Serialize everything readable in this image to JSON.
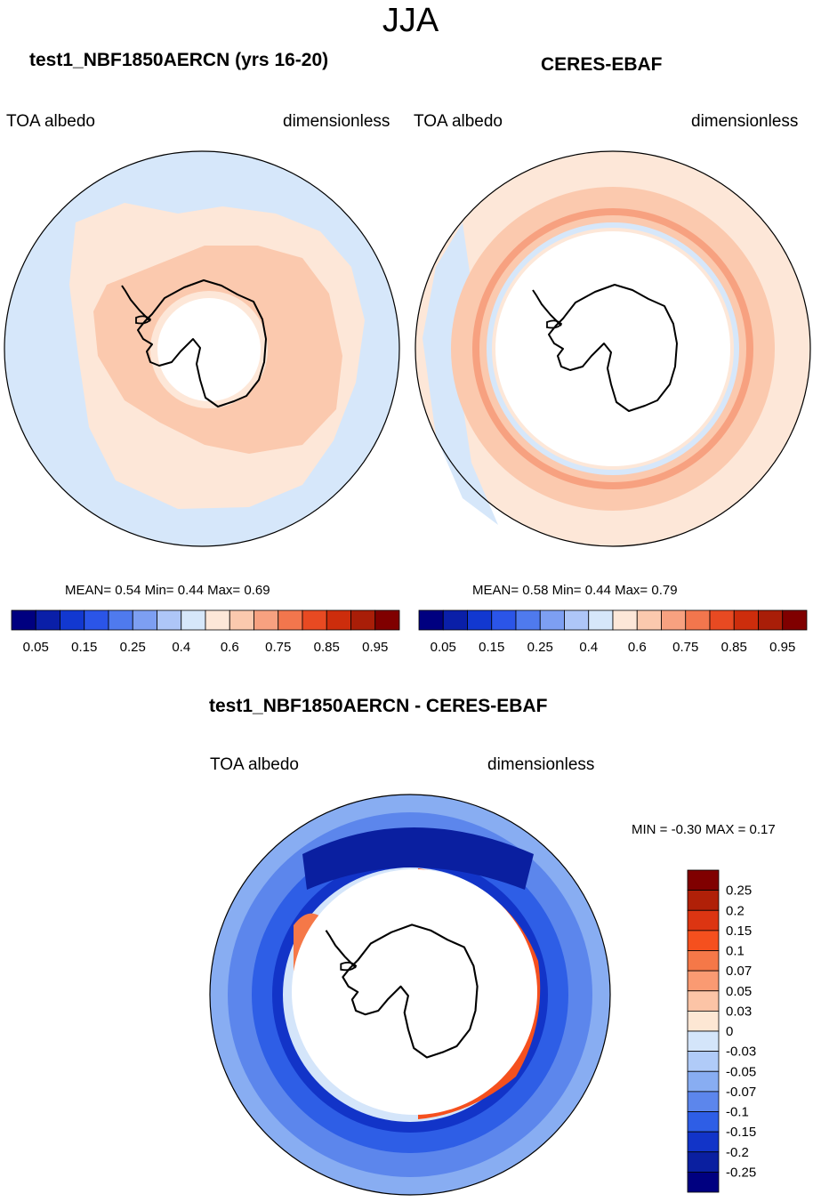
{
  "header": {
    "title": "JJA"
  },
  "panels": {
    "model": {
      "title": "test1_NBF1850AERCN (yrs 16-20)",
      "left_label": "TOA albedo",
      "right_label": "dimensionless",
      "stats_label": "MEAN=   0.54  Min=   0.44  Max=   0.69"
    },
    "obs": {
      "title": "CERES-EBAF",
      "left_label": "TOA albedo",
      "right_label": "dimensionless",
      "stats_label": "MEAN=   0.58  Min=   0.44  Max=   0.79"
    },
    "diff": {
      "title": "test1_NBF1850AERCN - CERES-EBAF",
      "left_label": "TOA albedo",
      "right_label": "dimensionless",
      "stats_label": "MIN =  -0.30 MAX =   0.17"
    }
  },
  "chart_data": [
    {
      "type": "heatmap",
      "title": "test1_NBF1850AERCN (yrs 16-20)",
      "projection": "south polar stereographic",
      "variable": "TOA albedo",
      "units": "dimensionless",
      "mean": 0.54,
      "min": 0.44,
      "max": 0.69,
      "colorbar": {
        "ticks": [
          "0.05",
          "0.15",
          "0.25",
          "0.4",
          "0.6",
          "0.75",
          "0.85",
          "0.95"
        ],
        "levels": [
          0.05,
          0.1,
          0.15,
          0.2,
          0.25,
          0.3,
          0.4,
          0.5,
          0.6,
          0.7,
          0.75,
          0.8,
          0.85,
          0.9,
          0.95
        ],
        "colors": [
          "#000080",
          "#0a1fa8",
          "#1238d0",
          "#2b55e8",
          "#4f7aee",
          "#7d9ff2",
          "#aec6f7",
          "#d6e7fa",
          "#fde7d8",
          "#fbc9ae",
          "#f7a180",
          "#f2764d",
          "#e84a22",
          "#cd2d0c",
          "#a91e08",
          "#800000"
        ]
      }
    },
    {
      "type": "heatmap",
      "title": "CERES-EBAF",
      "projection": "south polar stereographic",
      "variable": "TOA albedo",
      "units": "dimensionless",
      "mean": 0.58,
      "min": 0.44,
      "max": 0.79,
      "colorbar": {
        "ticks": [
          "0.05",
          "0.15",
          "0.25",
          "0.4",
          "0.6",
          "0.75",
          "0.85",
          "0.95"
        ],
        "levels": [
          0.05,
          0.1,
          0.15,
          0.2,
          0.25,
          0.3,
          0.4,
          0.5,
          0.6,
          0.7,
          0.75,
          0.8,
          0.85,
          0.9,
          0.95
        ],
        "colors": [
          "#000080",
          "#0a1fa8",
          "#1238d0",
          "#2b55e8",
          "#4f7aee",
          "#7d9ff2",
          "#aec6f7",
          "#d6e7fa",
          "#fde7d8",
          "#fbc9ae",
          "#f7a180",
          "#f2764d",
          "#e84a22",
          "#cd2d0c",
          "#a91e08",
          "#800000"
        ]
      }
    },
    {
      "type": "heatmap",
      "title": "test1_NBF1850AERCN - CERES-EBAF",
      "projection": "south polar stereographic",
      "variable": "TOA albedo",
      "units": "dimensionless",
      "min": -0.3,
      "max": 0.17,
      "colorbar": {
        "ticks": [
          "0.25",
          "0.2",
          "0.15",
          "0.1",
          "0.07",
          "0.05",
          "0.03",
          "0",
          "-0.03",
          "-0.05",
          "-0.07",
          "-0.1",
          "-0.15",
          "-0.2",
          "-0.25"
        ],
        "colors": [
          "#800000",
          "#b02008",
          "#dc3512",
          "#f5501e",
          "#f57848",
          "#fa9a72",
          "#fcc4a6",
          "#fde7d4",
          "#d4e5fa",
          "#b0cbf8",
          "#88adf2",
          "#5c86ec",
          "#2e5ee6",
          "#1234c8",
          "#0a1fa0",
          "#000080"
        ]
      }
    }
  ]
}
